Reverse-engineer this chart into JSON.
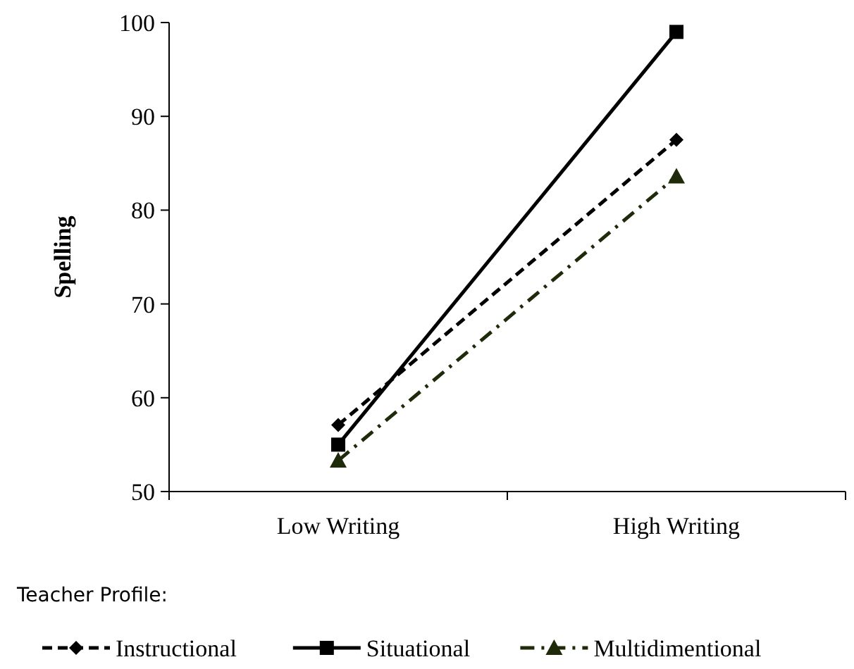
{
  "chart_data": {
    "type": "line",
    "ylabel": "Spelling",
    "legend_title": "Teacher Profile:",
    "categories": [
      "Low Writing",
      "High Writing"
    ],
    "ylim": [
      50,
      100
    ],
    "yticks": [
      50,
      60,
      70,
      80,
      90,
      100
    ],
    "grid": false,
    "legend": "bottom",
    "series": [
      {
        "name": "Instructional",
        "color": "#000000",
        "values": [
          57.1,
          87.5
        ],
        "marker": "diamond",
        "line_style": "dashed"
      },
      {
        "name": "Situational",
        "color": "#000000",
        "values": [
          55.0,
          99.0
        ],
        "marker": "square",
        "line_style": "solid"
      },
      {
        "name": "Multidimentional",
        "color": "#1f2a0a",
        "values": [
          53.3,
          83.6
        ],
        "marker": "triangle",
        "line_style": "dashdot"
      }
    ]
  }
}
